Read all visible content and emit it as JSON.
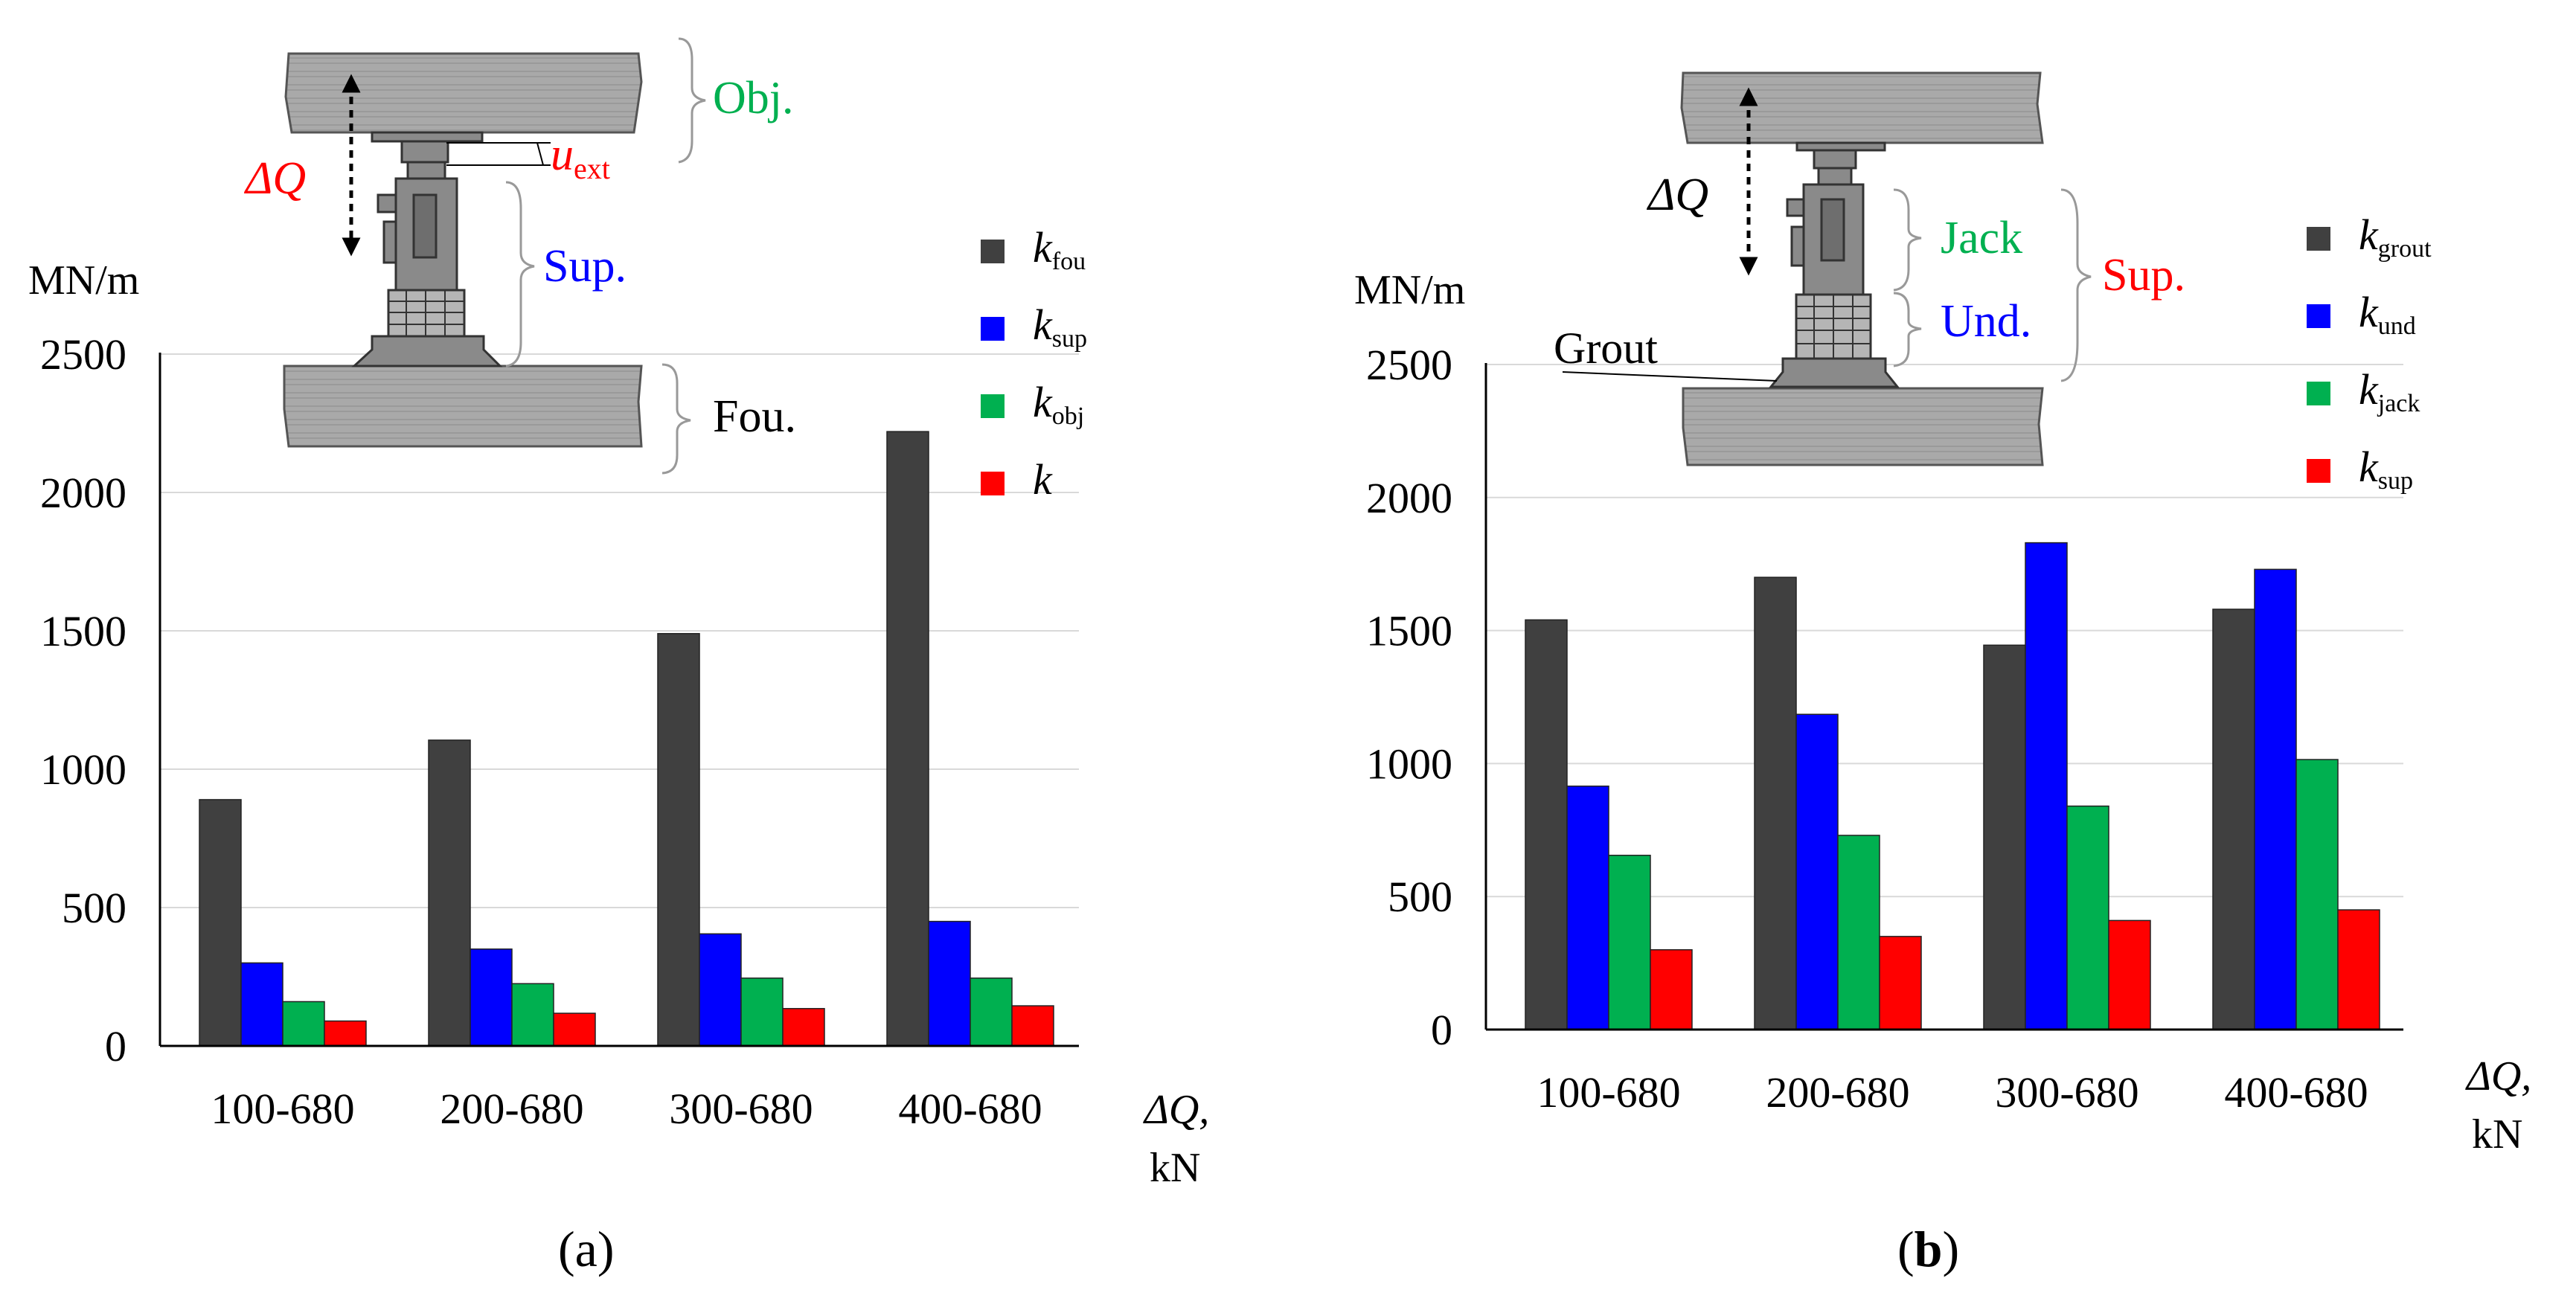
{
  "chart_data": [
    {
      "type": "bar",
      "panel_label": "a",
      "ylabel": "MN/m",
      "xlabel_main": "ΔQ,",
      "xlabel_unit": "kN",
      "ylim": [
        0,
        2500
      ],
      "yticks": [
        0,
        500,
        1000,
        1500,
        2000,
        2500
      ],
      "grid": true,
      "legend_position": "top-right",
      "categories": [
        "100-680",
        "200-680",
        "300-680",
        "400-680"
      ],
      "series": [
        {
          "name": "k",
          "sub": "fou",
          "color": "#404040",
          "values": [
            890,
            1105,
            1490,
            2220
          ]
        },
        {
          "name": "k",
          "sub": "sup",
          "color": "#0000ff",
          "values": [
            300,
            350,
            405,
            450
          ]
        },
        {
          "name": "k",
          "sub": "obj",
          "color": "#00b050",
          "values": [
            160,
            225,
            245,
            245
          ]
        },
        {
          "name": "k",
          "sub": "",
          "color": "#ff0000",
          "values": [
            90,
            118,
            135,
            145
          ]
        }
      ],
      "diagram": {
        "labels": {
          "obj": "Obj.",
          "sup": "Sup.",
          "fou": "Fou.",
          "dq": "ΔQ",
          "uext_main": "u",
          "uext_sub": "ext"
        }
      }
    },
    {
      "type": "bar",
      "panel_label": "b",
      "ylabel": "MN/m",
      "xlabel_main": "ΔQ,",
      "xlabel_unit": "kN",
      "ylim": [
        0,
        2500
      ],
      "yticks": [
        0,
        500,
        1000,
        1500,
        2000,
        2500
      ],
      "grid": true,
      "legend_position": "top-right",
      "categories": [
        "100-680",
        "200-680",
        "300-680",
        "400-680"
      ],
      "series": [
        {
          "name": "k",
          "sub": "grout",
          "color": "#404040",
          "values": [
            1540,
            1700,
            1445,
            1580
          ]
        },
        {
          "name": "k",
          "sub": "und",
          "color": "#0000ff",
          "values": [
            915,
            1185,
            1830,
            1730
          ]
        },
        {
          "name": "k",
          "sub": "jack",
          "color": "#00b050",
          "values": [
            655,
            730,
            840,
            1015
          ]
        },
        {
          "name": "k",
          "sub": "sup",
          "color": "#ff0000",
          "values": [
            300,
            350,
            410,
            450
          ]
        }
      ],
      "diagram": {
        "labels": {
          "jack": "Jack",
          "und": "Und.",
          "sup": "Sup.",
          "grout": "Grout",
          "dq": "ΔQ"
        }
      }
    }
  ],
  "colors": {
    "dark": "#404040",
    "blue": "#0000ff",
    "green": "#00b050",
    "red": "#ff0000",
    "slab": "#a6a6a6"
  }
}
